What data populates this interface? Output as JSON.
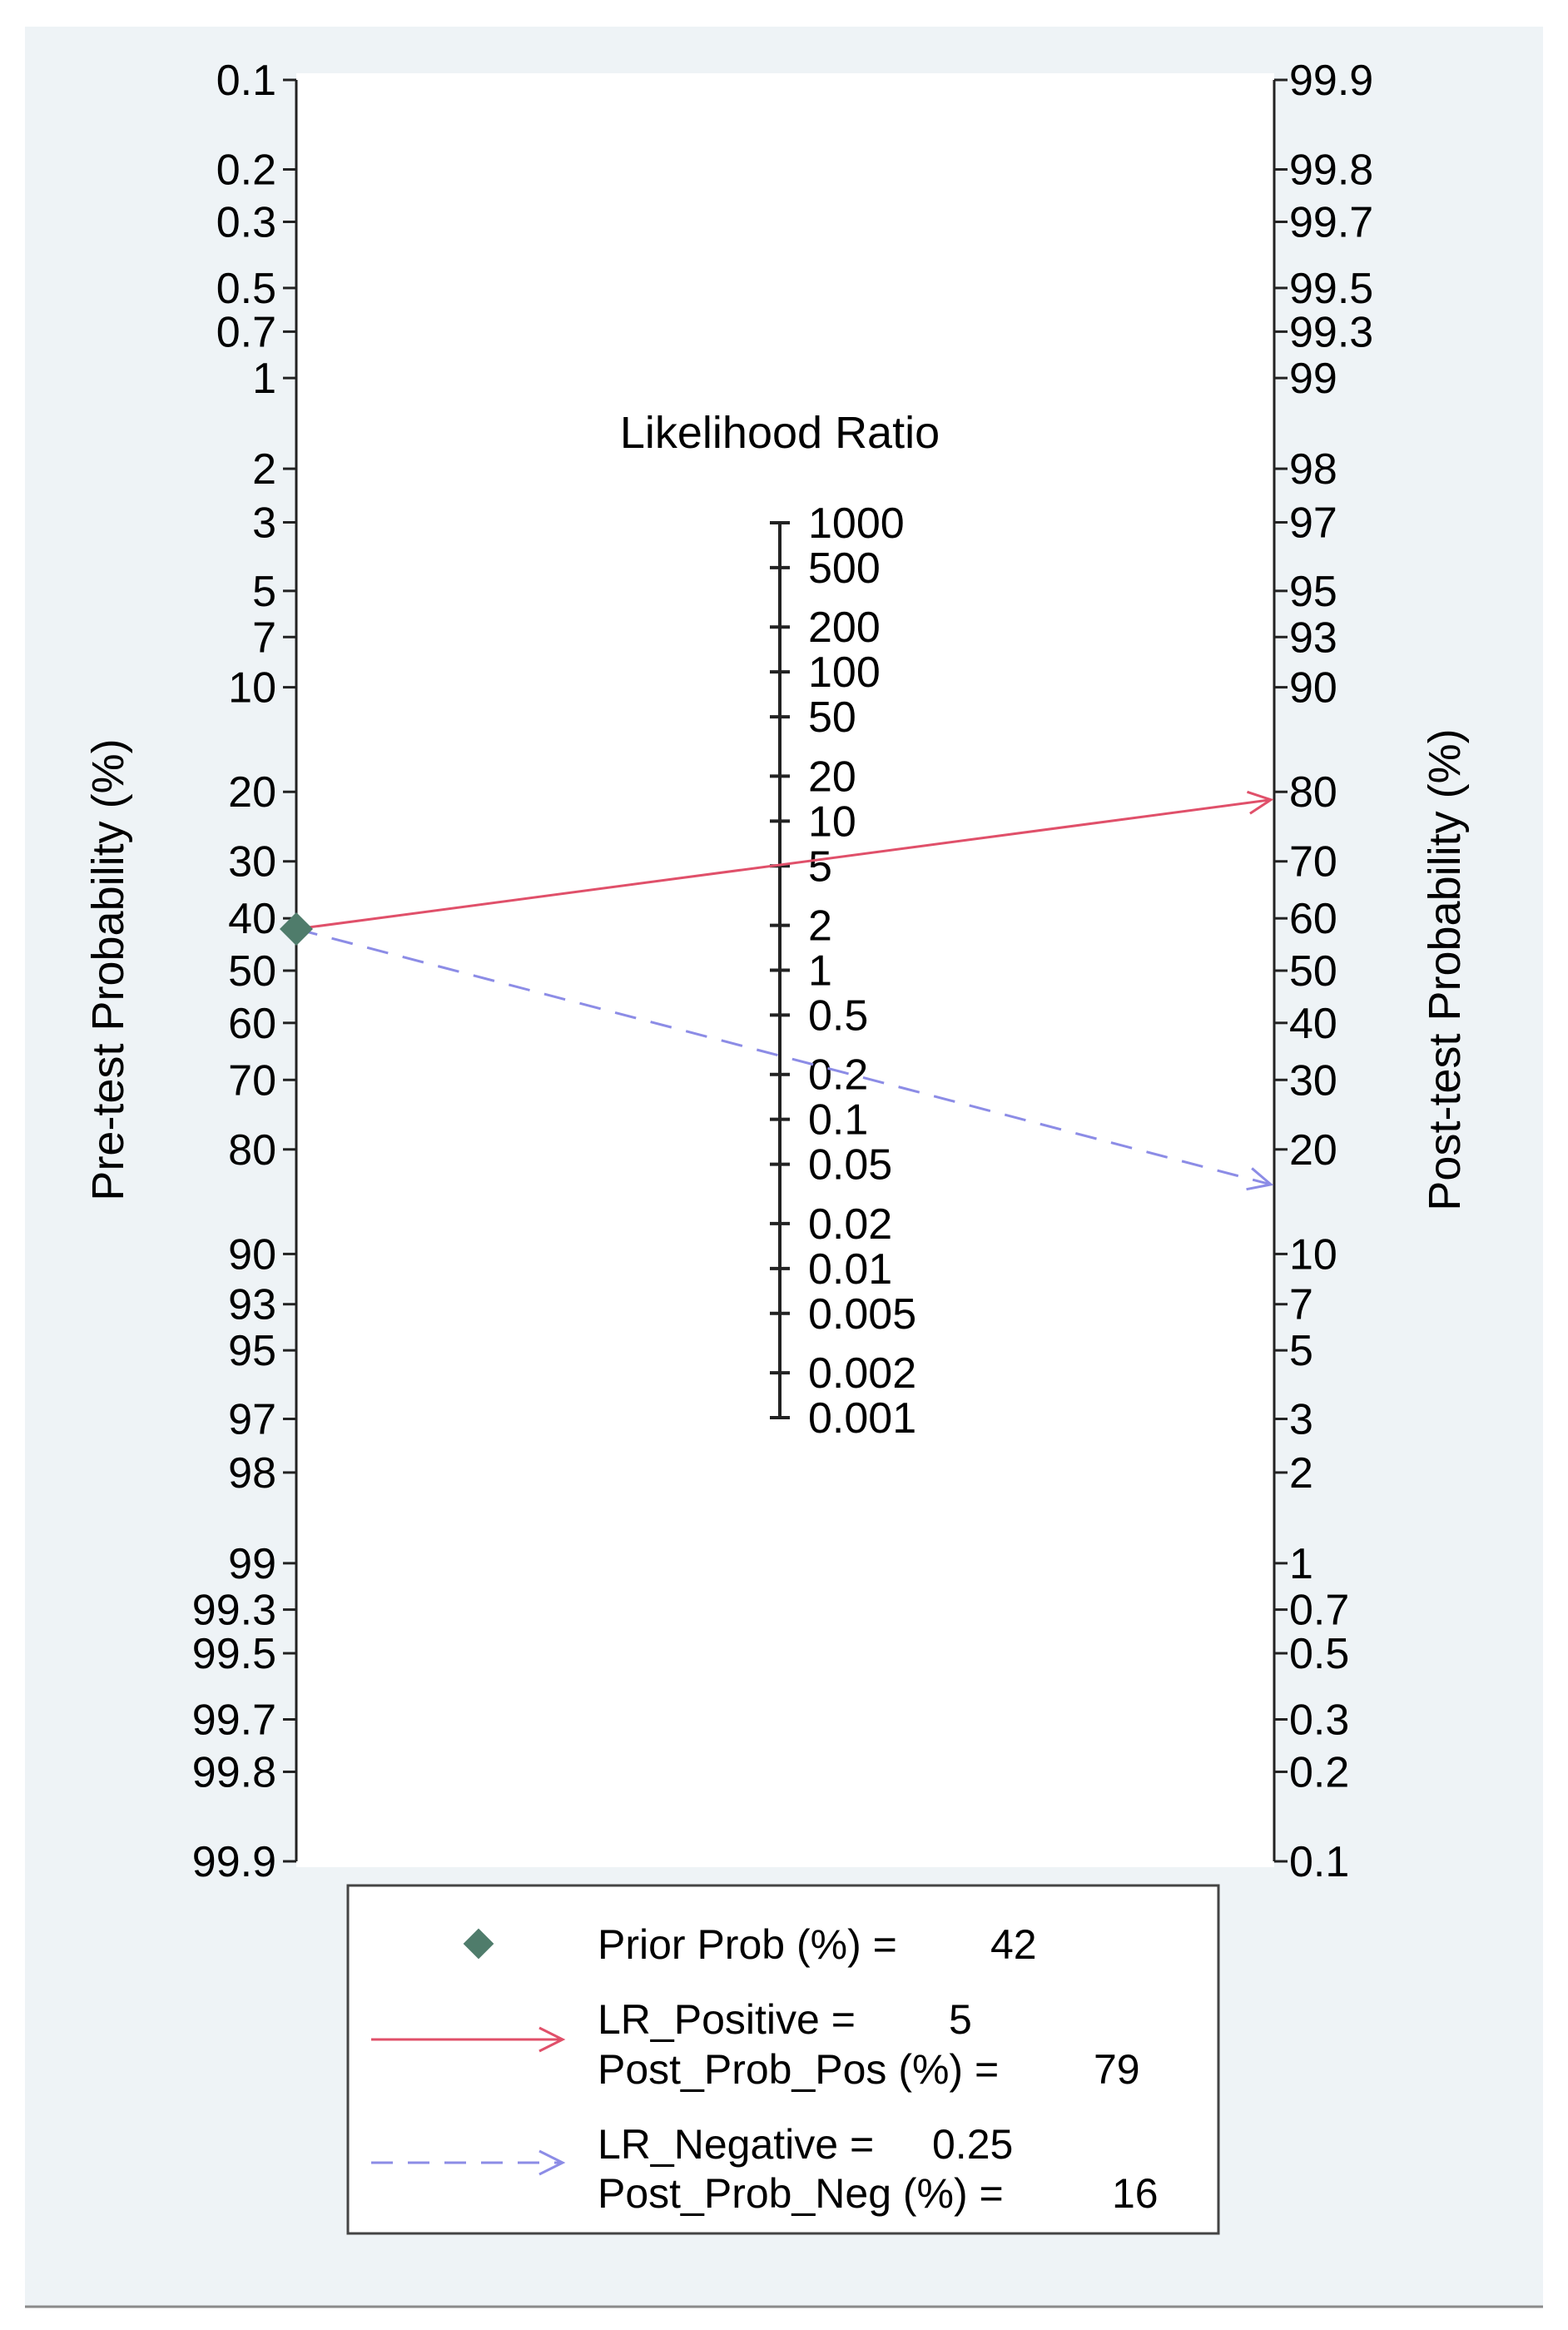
{
  "chart_data": {
    "type": "line",
    "subtype": "fagan-nomogram",
    "left_axis": {
      "label": "Pre-test Probability (%)",
      "ticks": [
        "0.1",
        "0.2",
        "0.3",
        "0.5",
        "0.7",
        "1",
        "2",
        "3",
        "5",
        "7",
        "10",
        "20",
        "30",
        "40",
        "50",
        "60",
        "70",
        "80",
        "90",
        "93",
        "95",
        "97",
        "98",
        "99",
        "99.3",
        "99.5",
        "99.7",
        "99.8",
        "99.9"
      ]
    },
    "right_axis": {
      "label": "Post-test Probability (%)",
      "ticks": [
        "99.9",
        "99.8",
        "99.7",
        "99.5",
        "99.3",
        "99",
        "98",
        "97",
        "95",
        "93",
        "90",
        "80",
        "70",
        "60",
        "50",
        "40",
        "30",
        "20",
        "10",
        "7",
        "5",
        "3",
        "2",
        "1",
        "0.7",
        "0.5",
        "0.3",
        "0.2",
        "0.1"
      ]
    },
    "middle_axis": {
      "label": "Likelihood Ratio",
      "ticks": [
        "1000",
        "500",
        "200",
        "100",
        "50",
        "20",
        "10",
        "5",
        "2",
        "1",
        "0.5",
        "0.2",
        "0.1",
        "0.05",
        "0.02",
        "0.01",
        "0.005",
        "0.002",
        "0.001"
      ]
    },
    "prior_probability": 42,
    "lr_positive": 5,
    "post_prob_positive": 79,
    "lr_negative": 0.25,
    "post_prob_negative": 16,
    "series": [
      {
        "name": "LR_Positive",
        "color": "#e0506a",
        "dash": "solid",
        "from_prob": 42,
        "to_prob": 79
      },
      {
        "name": "LR_Negative",
        "color": "#8c8ce6",
        "dash": "dashed",
        "from_prob": 42,
        "to_prob": 16
      }
    ],
    "legend": {
      "position": "bottom",
      "prior_label": "Prior Prob (%) =",
      "prior_value": "42",
      "lr_pos_label": "LR_Positive =",
      "lr_pos_value": "5",
      "post_pos_label": "Post_Prob_Pos (%) =",
      "post_pos_value": "79",
      "lr_neg_label": "LR_Negative =",
      "lr_neg_value": "0.25",
      "post_neg_label": "Post_Prob_Neg (%) =",
      "post_neg_value": "16"
    },
    "marker_color": "#4f7c6b"
  }
}
